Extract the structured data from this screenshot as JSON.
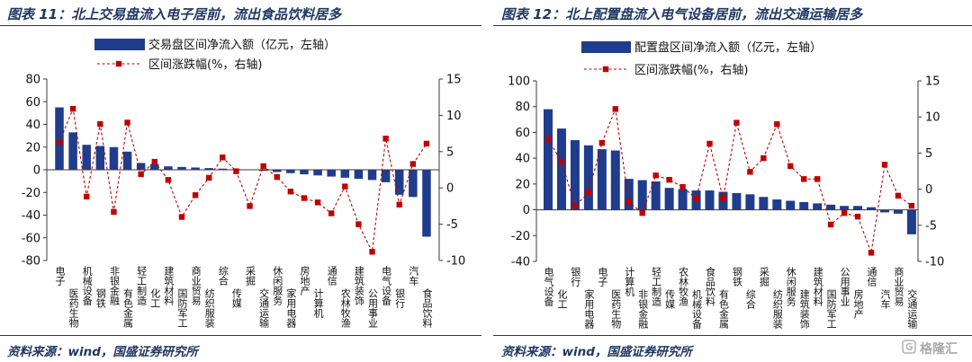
{
  "panels": [
    {
      "source": "资料来源：wind，国盛证券研究所"
    },
    {
      "source": "资料来源：wind，国盛证券研究所"
    }
  ],
  "watermark": {
    "text": "格隆汇",
    "icon": "gelonghui-logo-icon"
  },
  "chart_data": [
    {
      "type": "bar",
      "title": "图表 11：北上交易盘流入电子居前，流出食品饮料居多",
      "categories": [
        "电子",
        "医药生物",
        "机械设备",
        "钢铁",
        "非银金融",
        "有色金属",
        "轻工制造",
        "化工",
        "建筑材料",
        "国防军工",
        "商业贸易",
        "纺织服装",
        "综合",
        "传媒",
        "采掘",
        "交通运输",
        "休闲服务",
        "家用电器",
        "房地产",
        "计算机",
        "通信",
        "农林牧渔",
        "建筑装饰",
        "公用事业",
        "电气设备",
        "银行",
        "汽车",
        "食品饮料"
      ],
      "series": [
        {
          "name": "交易盘区间净流入额（亿元，左轴）",
          "type": "bar",
          "y_axis": "left",
          "values": [
            55,
            33,
            22,
            21,
            20,
            16,
            6,
            5,
            3,
            2.5,
            2,
            1.5,
            1,
            0.5,
            0.2,
            -1,
            -2,
            -3,
            -4,
            -5,
            -6,
            -7,
            -8,
            -9,
            -11,
            -22,
            -24,
            -59
          ]
        },
        {
          "name": "区间涨跌幅(%，右轴)",
          "type": "line",
          "y_axis": "right",
          "values": [
            6.3,
            10.9,
            -1.2,
            8.8,
            -3.3,
            9.0,
            1.9,
            3.6,
            1.1,
            -4.0,
            -1.0,
            1.4,
            4.2,
            2.3,
            -2.5,
            3.0,
            1.5,
            -0.5,
            -1.4,
            -2.0,
            -3.5,
            0.2,
            -5.0,
            -8.8,
            6.8,
            -2.3,
            3.3,
            6.1
          ]
        }
      ],
      "y_left": {
        "range": [
          -80,
          80
        ],
        "ticks": [
          80,
          60,
          40,
          20,
          0,
          -20,
          -40,
          -60,
          -80
        ]
      },
      "y_right": {
        "range": [
          -10,
          15
        ],
        "ticks": [
          15,
          10,
          5,
          0,
          -5,
          -10
        ]
      },
      "colors": {
        "bar": "#1f3d8c",
        "line": "#c00000"
      },
      "legend_placement": "top-left",
      "grid": false
    },
    {
      "type": "bar",
      "title": "图表 12：北上配置盘流入电气设备居前，流出交通运输居多",
      "categories": [
        "电气设备",
        "化工",
        "银行",
        "家用电器",
        "电子",
        "医药生物",
        "计算机",
        "非银金融",
        "轻工制造",
        "传媒",
        "农林牧渔",
        "机械设备",
        "食品饮料",
        "有色金属",
        "钢铁",
        "综合",
        "采掘",
        "纺织服装",
        "休闲服务",
        "建筑装饰",
        "建筑材料",
        "国防军工",
        "公用事业",
        "房地产",
        "通信",
        "汽车",
        "商业贸易",
        "交通运输"
      ],
      "series": [
        {
          "name": "配置盘区间净流入额（亿元，左轴）",
          "type": "bar",
          "y_axis": "left",
          "values": [
            78,
            63,
            54,
            50,
            47,
            46,
            24,
            23,
            22,
            17,
            16,
            15,
            15,
            14,
            13,
            12,
            10,
            8,
            7,
            6,
            5,
            4,
            3,
            3,
            2,
            -2,
            -3,
            -19
          ]
        },
        {
          "name": "区间涨跌幅(%，右轴)",
          "type": "line",
          "y_axis": "right",
          "values": [
            6.9,
            3.8,
            -2.3,
            -0.5,
            6.4,
            11.1,
            -1.8,
            -3.3,
            1.9,
            1.3,
            0.3,
            -1.3,
            6.3,
            -1.3,
            9.2,
            2.4,
            4.3,
            9.0,
            3.2,
            1.4,
            1.4,
            -4.9,
            -3.3,
            -3.8,
            -8.8,
            3.4,
            -0.9,
            -2.3
          ]
        }
      ],
      "y_left": {
        "range": [
          -40,
          100
        ],
        "ticks": [
          100,
          80,
          60,
          40,
          20,
          0,
          -20,
          -40
        ]
      },
      "y_right": {
        "range": [
          -10,
          15
        ],
        "ticks": [
          15,
          10,
          5,
          0,
          -5,
          -10
        ]
      },
      "colors": {
        "bar": "#1f3d8c",
        "line": "#c00000"
      },
      "legend_placement": "top-left",
      "grid": false
    }
  ]
}
